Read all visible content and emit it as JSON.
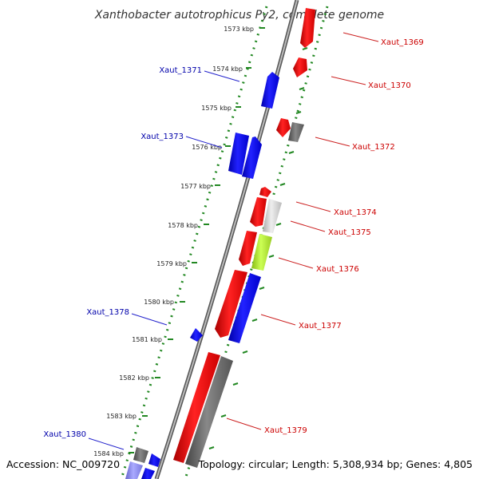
{
  "title": "Xanthobacter autotrophicus Py2, complete genome",
  "footer": {
    "accession": "Accession: NC_009720",
    "summary": "Topology: circular; Length: 5,308,934 bp; Genes: 4,805"
  },
  "colors": {
    "forward": "#ff0000",
    "reverse": "#0000ff",
    "dark": "#666666",
    "light": "#cccccc",
    "lime": "#aadd22",
    "lavender": "#8888ee",
    "tick": "#228822",
    "backbone": "#999999",
    "label_forward": "#cc0000",
    "label_reverse": "#0000aa"
  },
  "kbp_labels": [
    "1573 kbp",
    "1574 kbp",
    "1575 kbp",
    "1576 kbp",
    "1577 kbp",
    "1578 kbp",
    "1579 kbp",
    "1580 kbp",
    "1581 kbp",
    "1582 kbp",
    "1583 kbp",
    "1584 kbp"
  ],
  "gene_labels": [
    {
      "text": "Xaut_1369",
      "strand": "forward"
    },
    {
      "text": "Xaut_1370",
      "strand": "forward"
    },
    {
      "text": "Xaut_1371",
      "strand": "reverse"
    },
    {
      "text": "Xaut_1372",
      "strand": "forward"
    },
    {
      "text": "Xaut_1373",
      "strand": "reverse"
    },
    {
      "text": "Xaut_1374",
      "strand": "forward"
    },
    {
      "text": "Xaut_1375",
      "strand": "forward"
    },
    {
      "text": "Xaut_1376",
      "strand": "forward"
    },
    {
      "text": "Xaut_1377",
      "strand": "forward"
    },
    {
      "text": "Xaut_1378",
      "strand": "reverse"
    },
    {
      "text": "Xaut_1379",
      "strand": "forward"
    },
    {
      "text": "Xaut_1380",
      "strand": "reverse"
    }
  ]
}
